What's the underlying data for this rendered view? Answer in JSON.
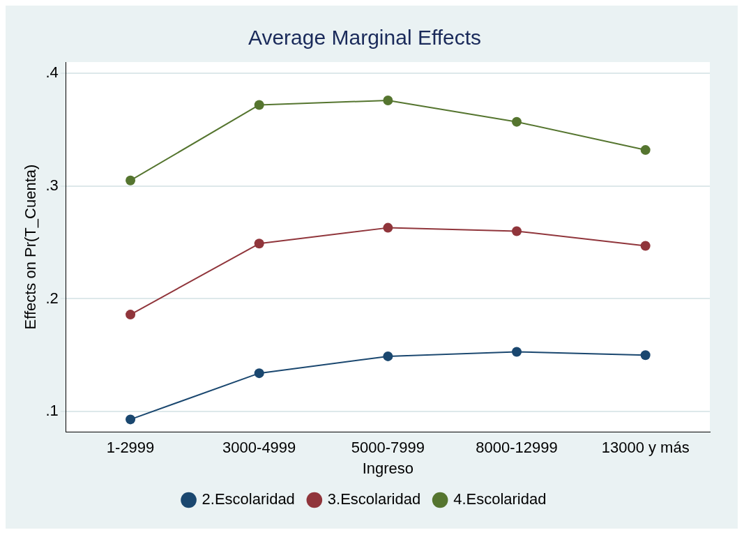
{
  "chart_data": {
    "type": "line",
    "title": "Average Marginal Effects",
    "xlabel": "Ingreso",
    "ylabel": "Effects on Pr(T_Cuenta)",
    "categories": [
      "1-2999",
      "3000-4999",
      "5000-7999",
      "8000-12999",
      "13000 y más"
    ],
    "series": [
      {
        "name": "2.Escolaridad",
        "color": "#1a476f",
        "values": [
          0.093,
          0.134,
          0.149,
          0.153,
          0.15
        ]
      },
      {
        "name": "3.Escolaridad",
        "color": "#90353b",
        "values": [
          0.186,
          0.249,
          0.263,
          0.26,
          0.247
        ]
      },
      {
        "name": "4.Escolaridad",
        "color": "#55752f",
        "values": [
          0.305,
          0.372,
          0.376,
          0.357,
          0.332
        ]
      }
    ],
    "ylim": [
      0.082,
      0.41
    ],
    "yticks": [
      {
        "value": 0.1,
        "label": ".1"
      },
      {
        "value": 0.2,
        "label": ".2"
      },
      {
        "value": 0.3,
        "label": ".3"
      },
      {
        "value": 0.4,
        "label": ".4"
      }
    ],
    "grid": "y",
    "legend": "bottom",
    "marker": "circle",
    "line_style": "solid"
  }
}
